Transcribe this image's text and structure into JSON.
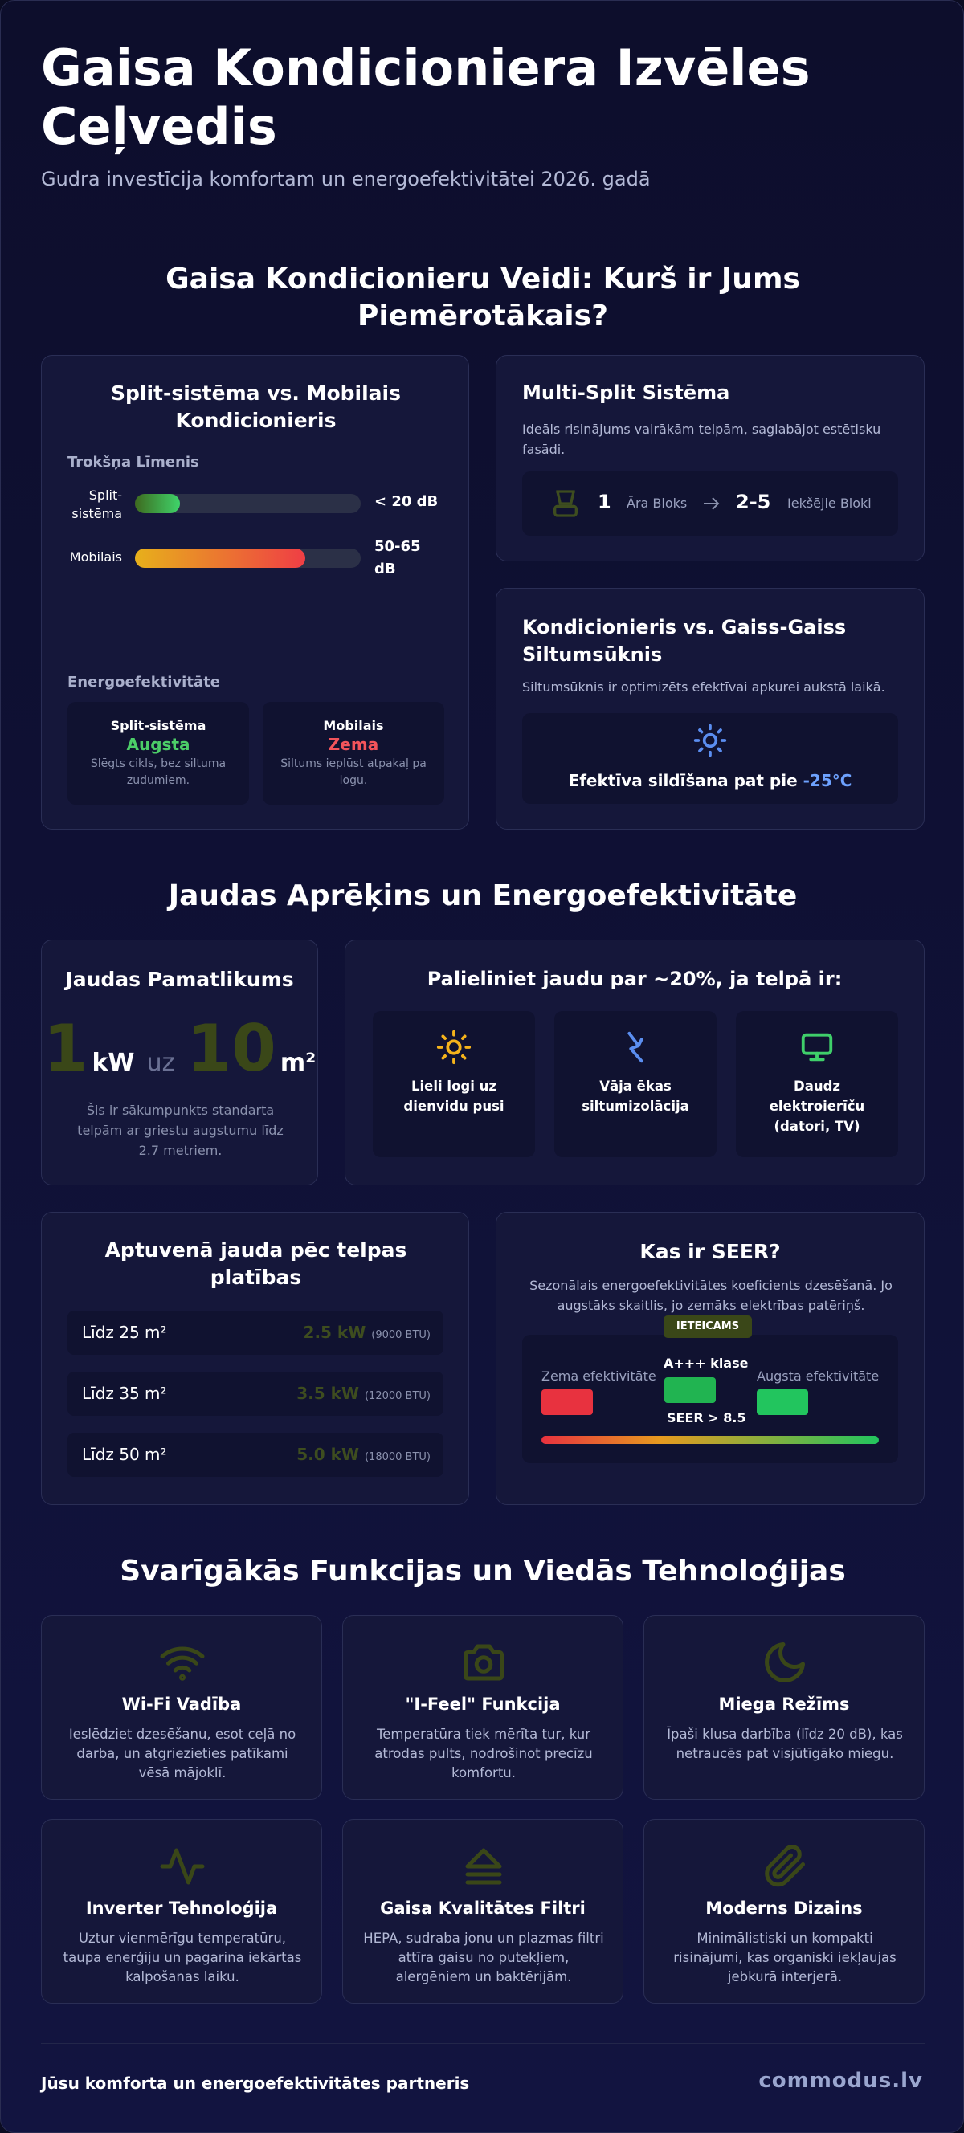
{
  "header": {
    "title": "Gaisa Kondicioniera Izvēles Ceļvedis",
    "subtitle": "Gudra investīcija komfortam un energoefektivitātei 2026. gadā"
  },
  "types_section": {
    "title": "Gaisa Kondicionieru Veidi: Kurš ir Jums Piemērotākais?",
    "split_vs_mobile": {
      "title": "Split-sistēma vs. Mobilais Kondicionieris",
      "noise_label": "Trokšņa Līmenis",
      "noise": [
        {
          "label": "Split-sistēma",
          "value": "< 20 dB"
        },
        {
          "label": "Mobilais",
          "value": "50-65 dB"
        }
      ],
      "efficiency_label": "Energoefektivitāte",
      "efficiency": [
        {
          "name": "Split-sistēma",
          "rating": "Augsta",
          "note": "Slēgts cikls, bez siltuma zudumiem."
        },
        {
          "name": "Mobilais",
          "rating": "Zema",
          "note": "Siltums ieplūst atpakaļ pa logu."
        }
      ]
    },
    "multi_split": {
      "title": "Multi-Split Sistēma",
      "text": "Ideāls risinājums vairākām telpām, saglabājot estētisku fasādi.",
      "outdoor_count": "1",
      "outdoor_label": "Āra Bloks",
      "indoor_count": "2-5",
      "indoor_label": "Iekšējie Bloki"
    },
    "heat_pump": {
      "title": "Kondicionieris vs. Gaiss-Gaiss Siltumsūknis",
      "text": "Siltumsūknis ir optimizēts efektīvai apkurei aukstā laikā.",
      "highlight": "Efektīva sildīšana pat pie",
      "temperature": "-25°C"
    }
  },
  "power_section": {
    "title": "Jaudas Aprēķins un Energoefektivitāte",
    "baseline": {
      "title": "Jaudas Pamatlikums",
      "kw": "1",
      "kw_unit": "kW",
      "per": "uz",
      "area": "10",
      "area_unit": "m²",
      "note": "Šis ir sākumpunkts standarta telpām ar griestu augstumu līdz 2.7 metriem."
    },
    "increase": {
      "title": "Palieliniet jaudu par ~20%, ja telpā ir:",
      "factors": [
        "Lieli logi uz dienvidu pusi",
        "Vāja ēkas siltumizolācija",
        "Daudz elektroierīču (datori, TV)"
      ]
    },
    "by_area": {
      "title": "Aptuvenā jauda pēc telpas platības",
      "rows": [
        {
          "area": "Līdz 25 m²",
          "power": "2.5 kW",
          "btu": "(9000 BTU)"
        },
        {
          "area": "Līdz 35 m²",
          "power": "3.5 kW",
          "btu": "(12000 BTU)"
        },
        {
          "area": "Līdz 50 m²",
          "power": "5.0 kW",
          "btu": "(18000 BTU)"
        }
      ]
    },
    "seer": {
      "title": "Kas ir SEER?",
      "text": "Sezonālais energoefektivitātes koeficients dzesēšanā. Jo augstāks skaitlis, jo zemāks elektrības patēriņš.",
      "badge": "IETEICAMS",
      "low": "Zema efektivitāte",
      "class": "A+++ klase",
      "threshold": "SEER > 8.5",
      "high": "Augsta efektivitāte"
    }
  },
  "features_section": {
    "title": "Svarīgākās Funkcijas un Viedās Tehnoloģijas",
    "items": [
      {
        "title": "Wi-Fi Vadība",
        "text": "Ieslēdziet dzesēšanu, esot ceļā no darba, un atgriezieties patīkami vēsā mājoklī."
      },
      {
        "title": "\"I-Feel\" Funkcija",
        "text": "Temperatūra tiek mērīta tur, kur atrodas pults, nodrošinot precīzu komfortu."
      },
      {
        "title": "Miega Režīms",
        "text": "Īpaši klusa darbība (līdz 20 dB), kas netraucēs pat visjūtīgāko miegu."
      },
      {
        "title": "Inverter Tehnoloģija",
        "text": "Uztur vienmērīgu temperatūru, taupa enerģiju un pagarina iekārtas kalpošanas laiku."
      },
      {
        "title": "Gaisa Kvalitātes Filtri",
        "text": "HEPA, sudraba jonu un plazmas filtri attīra gaisu no putekļiem, alergēniem un baktērijām."
      },
      {
        "title": "Moderns Dizains",
        "text": "Minimālistiski un kompakti risinājumi, kas organiski iekļaujas jebkurā interjerā."
      }
    ]
  },
  "footer": {
    "tagline": "Jūsu komforta un energoefektivitātes partneris",
    "brand": "commodus.lv"
  }
}
